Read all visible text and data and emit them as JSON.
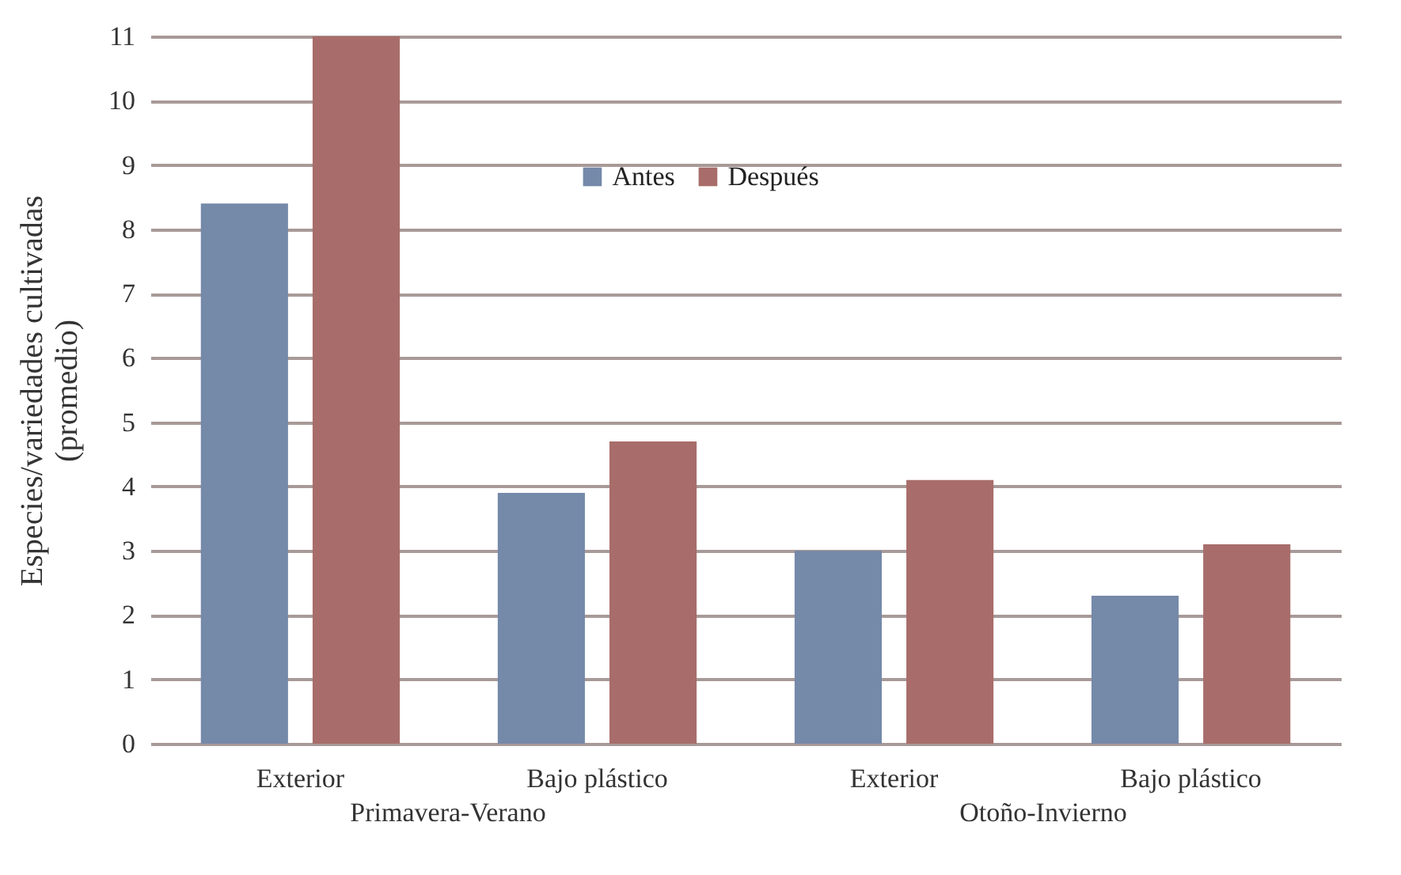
{
  "chart_data": {
    "type": "bar",
    "ylabel": "Especies/variedades cultivadas (promedio)",
    "categories": [
      "Exterior",
      "Bajo plástico",
      "Exterior",
      "Bajo plástico"
    ],
    "series": [
      {
        "name": "Antes",
        "color": "#7589a9",
        "values": [
          8.4,
          3.9,
          3.0,
          2.3
        ]
      },
      {
        "name": "Después",
        "color": "#a86d6a",
        "values": [
          11,
          4.7,
          4.1,
          3.1
        ]
      }
    ],
    "ylim": [
      0,
      11
    ],
    "yticks": [
      0,
      1,
      2,
      3,
      4,
      5,
      6,
      7,
      8,
      9,
      10,
      11
    ],
    "grid": "y",
    "legend": "top",
    "annotations": [
      "Primavera-Verano",
      "Otoño-Invierno"
    ]
  }
}
